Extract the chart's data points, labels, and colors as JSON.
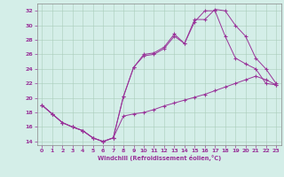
{
  "bg_color": "#d4eee8",
  "line_color": "#993399",
  "xlabel": "Windchill (Refroidissement éolien,°C)",
  "xlim": [
    -0.5,
    23.5
  ],
  "ylim": [
    13.5,
    33.0
  ],
  "yticks": [
    14,
    16,
    18,
    20,
    22,
    24,
    26,
    28,
    30,
    32
  ],
  "xticks": [
    0,
    1,
    2,
    3,
    4,
    5,
    6,
    7,
    8,
    9,
    10,
    11,
    12,
    13,
    14,
    15,
    16,
    17,
    18,
    19,
    20,
    21,
    22,
    23
  ],
  "curve1_x": [
    0,
    1,
    2,
    3,
    4,
    5,
    6,
    7,
    8,
    9,
    10,
    11,
    12,
    13,
    14,
    15,
    16,
    17,
    18,
    19,
    20,
    21,
    22,
    23
  ],
  "curve1_y": [
    19.0,
    17.8,
    16.6,
    16.0,
    15.5,
    14.5,
    14.0,
    14.5,
    17.5,
    17.8,
    18.0,
    18.4,
    18.9,
    19.3,
    19.7,
    20.1,
    20.5,
    21.0,
    21.5,
    22.0,
    22.5,
    23.0,
    22.5,
    21.8
  ],
  "curve2_x": [
    0,
    1,
    2,
    3,
    4,
    5,
    6,
    7,
    8,
    9,
    10,
    11,
    12,
    13,
    14,
    15,
    16,
    17,
    18,
    19,
    20,
    21,
    22,
    23
  ],
  "curve2_y": [
    19.0,
    17.8,
    16.6,
    16.0,
    15.5,
    14.5,
    14.0,
    14.5,
    20.2,
    24.2,
    26.0,
    26.2,
    27.0,
    28.8,
    27.5,
    30.8,
    30.8,
    32.2,
    32.0,
    30.0,
    28.5,
    25.5,
    24.0,
    22.0
  ],
  "curve3_x": [
    0,
    1,
    2,
    3,
    4,
    5,
    6,
    7,
    8,
    9,
    10,
    11,
    12,
    13,
    14,
    15,
    16,
    17,
    18,
    19,
    20,
    21,
    22,
    23
  ],
  "curve3_y": [
    19.0,
    17.8,
    16.6,
    16.0,
    15.5,
    14.5,
    14.0,
    14.5,
    20.2,
    24.2,
    25.8,
    26.0,
    26.8,
    28.5,
    27.5,
    30.5,
    32.0,
    32.0,
    28.5,
    25.5,
    24.7,
    24.0,
    22.0,
    21.8
  ]
}
